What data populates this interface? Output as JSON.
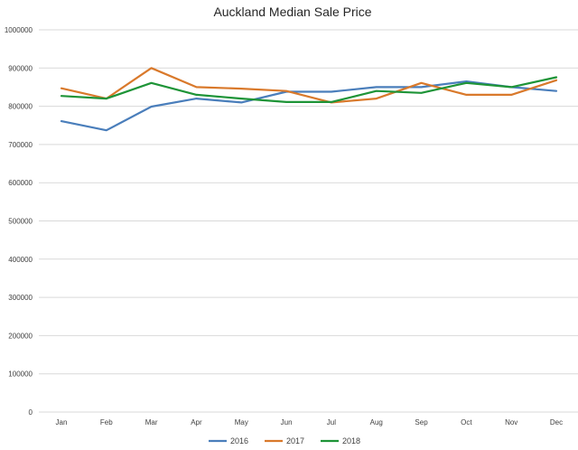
{
  "chart_data": {
    "type": "line",
    "title": "Auckland Median Sale Price",
    "xlabel": "",
    "ylabel": "",
    "categories": [
      "Jan",
      "Feb",
      "Mar",
      "Apr",
      "May",
      "Jun",
      "Jul",
      "Aug",
      "Sep",
      "Oct",
      "Nov",
      "Dec"
    ],
    "ylim": [
      0,
      1000000
    ],
    "yticks": [
      "0",
      "100000",
      "200000",
      "300000",
      "400000",
      "500000",
      "600000",
      "700000",
      "800000",
      "900000",
      "1000000"
    ],
    "grid": true,
    "legend_position": "bottom",
    "series": [
      {
        "name": "2016",
        "color": "#4a7ebb",
        "values": [
          761000,
          737000,
          799000,
          820000,
          810000,
          838000,
          838000,
          850000,
          850000,
          865000,
          850000,
          840000
        ]
      },
      {
        "name": "2017",
        "color": "#d9792b",
        "values": [
          847000,
          820000,
          900000,
          850000,
          846000,
          840000,
          810000,
          820000,
          861000,
          830000,
          830000,
          868000
        ]
      },
      {
        "name": "2018",
        "color": "#1e9437",
        "values": [
          827000,
          820000,
          861000,
          830000,
          820000,
          811000,
          811000,
          840000,
          835000,
          861000,
          850000,
          876000
        ]
      }
    ]
  }
}
